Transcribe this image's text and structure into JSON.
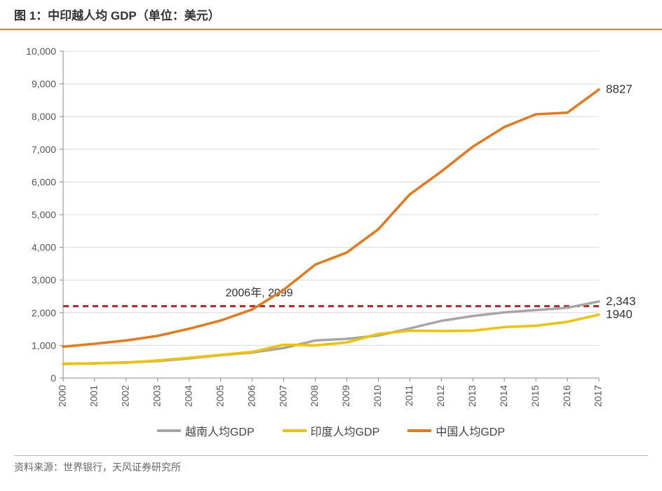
{
  "title": "图 1：中印越人均 GDP（单位：美元）",
  "source_label": "资料来源：世界银行，天风证券研究所",
  "chart": {
    "type": "line",
    "background_color": "#ffffff",
    "grid_color": "#d9d9d9",
    "axis_color": "#888888",
    "title_fontsize": 17,
    "axis_fontsize": 14,
    "ylim": [
      0,
      10000
    ],
    "ytick_step": 1000,
    "ytick_format": "comma",
    "x_categories": [
      "2000",
      "2001",
      "2002",
      "2003",
      "2004",
      "2005",
      "2006",
      "2007",
      "2008",
      "2009",
      "2010",
      "2011",
      "2012",
      "2013",
      "2014",
      "2015",
      "2016",
      "2017"
    ],
    "x_label_rotation": -90,
    "reference_line": {
      "y": 2200,
      "color": "#c1272d",
      "dash": "8,6",
      "width": 3,
      "label": "2006年, 2099",
      "label_color": "#333333",
      "label_fontsize": 16
    },
    "series": [
      {
        "name": "越南人均GDP",
        "color": "#a6a6a6",
        "width": 3.5,
        "values": [
          430,
          450,
          480,
          520,
          600,
          700,
          780,
          920,
          1150,
          1200,
          1300,
          1520,
          1750,
          1900,
          2010,
          2080,
          2150,
          2343
        ],
        "end_label": "2,343",
        "end_label_color": "#333333"
      },
      {
        "name": "印度人均GDP",
        "color": "#f2c200",
        "width": 3.5,
        "values": [
          440,
          450,
          470,
          540,
          620,
          710,
          800,
          1020,
          1000,
          1090,
          1350,
          1450,
          1440,
          1450,
          1560,
          1600,
          1720,
          1940
        ],
        "end_label": "1940",
        "end_label_color": "#333333"
      },
      {
        "name": "中国人均GDP",
        "color": "#e67817",
        "width": 3.5,
        "values": [
          960,
          1050,
          1150,
          1290,
          1510,
          1760,
          2099,
          2700,
          3470,
          3840,
          4550,
          5620,
          6320,
          7080,
          7680,
          8070,
          8120,
          8827
        ],
        "end_label": "8827",
        "end_label_color": "#333333"
      }
    ],
    "legend_fontsize": 16,
    "legend_color": "#444444"
  }
}
